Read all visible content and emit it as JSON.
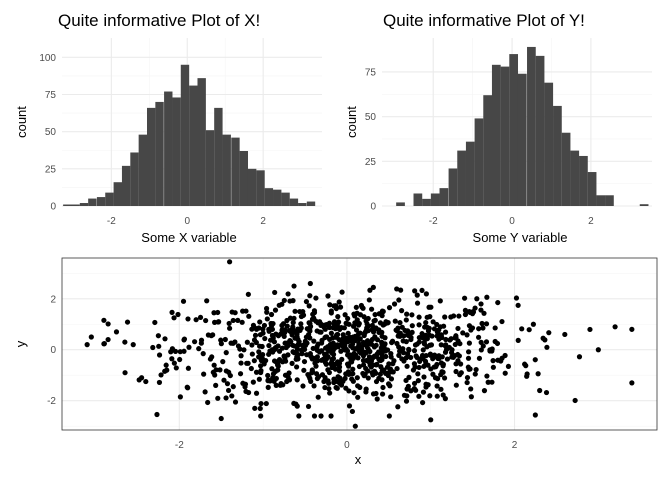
{
  "colors": {
    "bar_fill": "#474747",
    "point": "#000000",
    "grid": "#ebebeb",
    "frame": "#333333"
  },
  "chart_data": [
    {
      "id": "hist_x",
      "type": "bar",
      "title": "Quite informative Plot of X!",
      "xlabel": "Some X variable",
      "ylabel": "count",
      "xlim": [
        -3.3,
        3.55
      ],
      "ylim": [
        0,
        113
      ],
      "xticks": [
        -2,
        0,
        2
      ],
      "xtick_labels": [
        "-2",
        "0",
        "2"
      ],
      "yticks": [
        0,
        25,
        50,
        75,
        100
      ],
      "ytick_labels": [
        "0",
        "25",
        "50",
        "75",
        "100"
      ],
      "binwidth": 0.2212,
      "bin_centers": [
        -3.16,
        -2.94,
        -2.72,
        -2.5,
        -2.27,
        -2.05,
        -1.83,
        -1.61,
        -1.39,
        -1.17,
        -0.95,
        -0.73,
        -0.5,
        -0.28,
        -0.06,
        0.16,
        0.38,
        0.6,
        0.82,
        1.04,
        1.27,
        1.49,
        1.71,
        1.93,
        2.15,
        2.37,
        2.59,
        2.81,
        3.03,
        3.26
      ],
      "values": [
        1,
        1,
        2,
        5,
        6,
        9,
        16,
        27,
        36,
        48,
        66,
        70,
        77,
        73,
        95,
        81,
        86,
        51,
        66,
        48,
        46,
        37,
        25,
        24,
        12,
        11,
        9,
        5,
        2,
        3
      ],
      "grid": true,
      "legend": "none"
    },
    {
      "id": "hist_y",
      "type": "bar",
      "title": "Quite informative Plot of Y!",
      "xlabel": "Some Y variable",
      "ylabel": "count",
      "xlim": [
        -3.3,
        3.55
      ],
      "ylim": [
        0,
        94
      ],
      "xticks": [
        -2,
        0,
        2
      ],
      "xtick_labels": [
        "-2",
        "0",
        "2"
      ],
      "yticks": [
        0,
        25,
        50,
        75
      ],
      "ytick_labels": [
        "0",
        "25",
        "50",
        "75"
      ],
      "binwidth": 0.2212,
      "bin_centers": [
        -3.05,
        -2.83,
        -2.61,
        -2.39,
        -2.17,
        -1.95,
        -1.73,
        -1.5,
        -1.28,
        -1.06,
        -0.84,
        -0.62,
        -0.4,
        -0.18,
        0.04,
        0.26,
        0.49,
        0.71,
        0.93,
        1.15,
        1.37,
        1.59,
        1.81,
        2.03,
        2.25,
        2.47,
        2.69,
        2.91,
        3.13,
        3.35
      ],
      "values": [
        0,
        2,
        0,
        7,
        4,
        7,
        10,
        21,
        31,
        36,
        49,
        62,
        79,
        78,
        85,
        74,
        89,
        84,
        69,
        56,
        41,
        31,
        28,
        19,
        6,
        6,
        0,
        0,
        0,
        1
      ],
      "grid": true,
      "legend": "none"
    },
    {
      "id": "scatter_xy",
      "type": "scatter",
      "title": "",
      "xlabel": "x",
      "ylabel": "y",
      "xlim": [
        -3.4,
        3.7
      ],
      "ylim": [
        -3.15,
        3.6
      ],
      "xticks": [
        -2,
        0,
        2
      ],
      "xtick_labels": [
        "-2",
        "0",
        "2"
      ],
      "yticks": [
        -2,
        0,
        2
      ],
      "ytick_labels": [
        "-2",
        "0",
        "2"
      ],
      "n_points": 1000,
      "distribution": "standard-normal",
      "x": [
        -3.1,
        -3.05,
        -2.85,
        -2.75,
        -2.65,
        -2.55,
        -2.45,
        -2.4,
        -2.25,
        -2.15,
        -1.95,
        -1.5,
        -1.4,
        -1.1,
        3.0,
        3.2,
        3.4,
        3.4,
        2.6,
        2.3,
        1.8,
        1.55,
        1.0,
        0.1
      ],
      "y": [
        0.2,
        0.5,
        0.4,
        0.7,
        0.3,
        0.2,
        -1.1,
        -1.25,
        0.55,
        -0.8,
        1.9,
        -2.7,
        3.45,
        -2.3,
        0.0,
        0.9,
        0.8,
        -1.3,
        0.6,
        -1.6,
        1.85,
        2.0,
        -2.75,
        -3.0
      ],
      "grid": true,
      "legend": "none"
    }
  ]
}
